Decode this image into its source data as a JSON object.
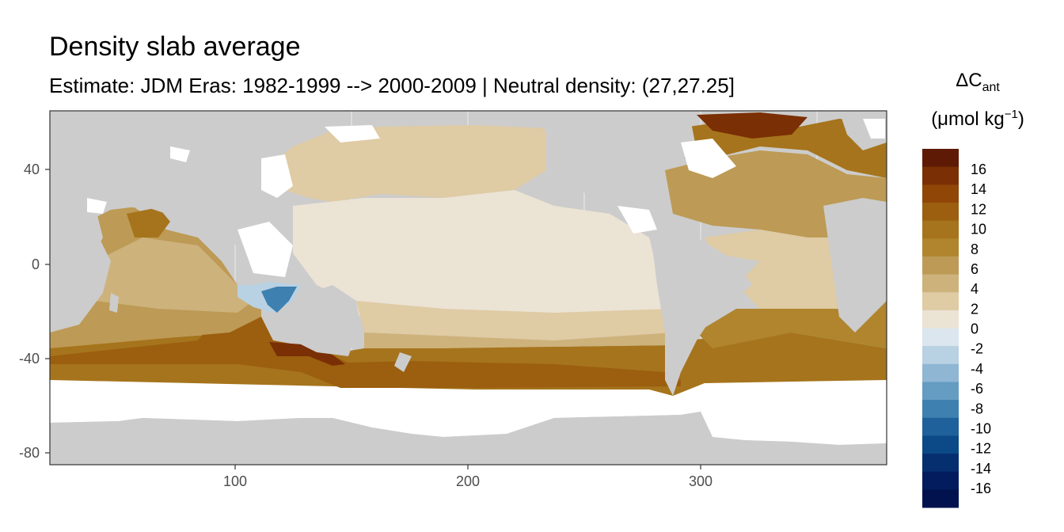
{
  "title": "Density slab average",
  "subtitle": "Estimate: JDM Eras: 1982-1999 --> 2000-2009 | Neutral density: (27,27.25]",
  "legend": {
    "title_main": "ΔC",
    "title_sub": "ant",
    "unit_main": "(μmol kg",
    "unit_sup": "−1",
    "unit_close": ")",
    "labels": [
      "16",
      "14",
      "12",
      "10",
      "8",
      "6",
      "4",
      "2",
      "0",
      "-2",
      "-4",
      "-6",
      "-8",
      "-10",
      "-12",
      "-14",
      "-16"
    ],
    "colors": [
      "#5e1a05",
      "#7a2f04",
      "#8f4606",
      "#9b5f0f",
      "#a6741c",
      "#b0852e",
      "#bd9a55",
      "#cdb27c",
      "#dfcba4",
      "#ebe3d4",
      "#dbe6ee",
      "#b8d1e3",
      "#8fb6d3",
      "#659cc2",
      "#3e80b0",
      "#1f619a",
      "#0b4a86",
      "#062f70",
      "#021c5e",
      "#01124f"
    ]
  },
  "map": {
    "x_ticks": [
      "100",
      "200",
      "300"
    ],
    "y_ticks": [
      "40",
      "0",
      "-40",
      "-80"
    ],
    "land_color": "#cccccc",
    "background_color": "#ffffff"
  }
}
